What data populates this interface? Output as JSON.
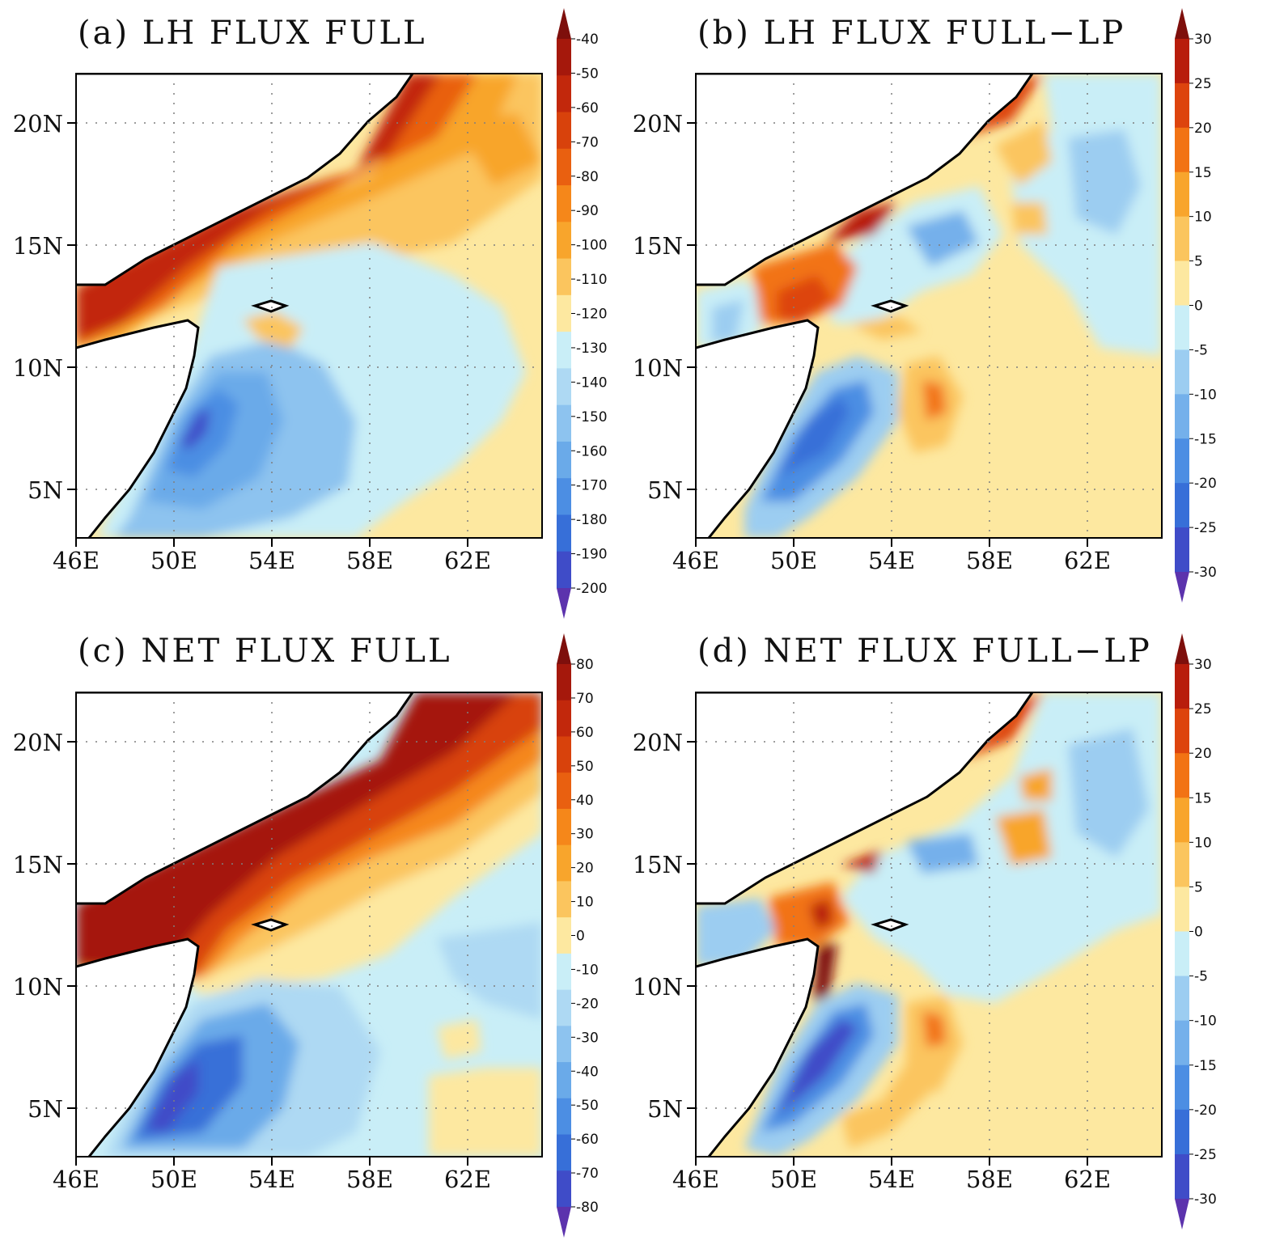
{
  "panels": [
    {
      "title": "(a)  LH  FLUX  FULL",
      "colorbar_ticks": [
        "-40",
        "-50",
        "-60",
        "-70",
        "-80",
        "-90",
        "-100",
        "-110",
        "-120",
        "-130",
        "-140",
        "-150",
        "-160",
        "-170",
        "-180",
        "-190",
        "-200"
      ],
      "colorbar_colors": [
        "#7e0f0c",
        "#a5180c",
        "#c2280c",
        "#d8420c",
        "#e96010",
        "#f5871a",
        "#f8a52c",
        "#fbc55e",
        "#fde8a0",
        "#c9eef7",
        "#aed9f3",
        "#8dc3ef",
        "#6aaae9",
        "#4c8ee3",
        "#376fd8",
        "#3f4cc8",
        "#5c33ad"
      ]
    },
    {
      "title": "(b)  LH  FLUX  FULL−LP",
      "colorbar_ticks": [
        "30",
        "25",
        "20",
        "15",
        "10",
        "5",
        "0",
        "-5",
        "-10",
        "-15",
        "-20",
        "-25",
        "-30"
      ],
      "colorbar_colors": [
        "#7e0f0c",
        "#b81d0c",
        "#dd440d",
        "#f27314",
        "#f8a52c",
        "#fbc55e",
        "#fde8a0",
        "#c9eef7",
        "#9ccdf1",
        "#74b0eb",
        "#4c8ee3",
        "#376fd8",
        "#3f4cc8",
        "#5c33ad"
      ]
    },
    {
      "title": "(c)  NET  FLUX  FULL",
      "colorbar_ticks": [
        "80",
        "70",
        "60",
        "50",
        "40",
        "30",
        "20",
        "10",
        "0",
        "-10",
        "-20",
        "-30",
        "-40",
        "-50",
        "-60",
        "-70",
        "-80"
      ],
      "colorbar_colors": [
        "#7e0f0c",
        "#a5180c",
        "#c2280c",
        "#d8420c",
        "#e96010",
        "#f5871a",
        "#f8a52c",
        "#fbc55e",
        "#fde8a0",
        "#c9eef7",
        "#aed9f3",
        "#8dc3ef",
        "#6aaae9",
        "#4c8ee3",
        "#376fd8",
        "#3f4cc8",
        "#5c33ad"
      ]
    },
    {
      "title": "(d)  NET  FLUX  FULL−LP",
      "colorbar_ticks": [
        "30",
        "25",
        "20",
        "15",
        "10",
        "5",
        "0",
        "-5",
        "-10",
        "-15",
        "-20",
        "-25",
        "-30"
      ],
      "colorbar_colors": [
        "#7e0f0c",
        "#b81d0c",
        "#dd440d",
        "#f27314",
        "#f8a52c",
        "#fbc55e",
        "#fde8a0",
        "#c9eef7",
        "#9ccdf1",
        "#74b0eb",
        "#4c8ee3",
        "#376fd8",
        "#3f4cc8",
        "#5c33ad"
      ]
    }
  ],
  "axes": {
    "lat_labels": [
      "20N",
      "15N",
      "10N",
      "5N"
    ],
    "lon_labels": [
      "46E",
      "50E",
      "54E",
      "58E",
      "62E"
    ]
  }
}
